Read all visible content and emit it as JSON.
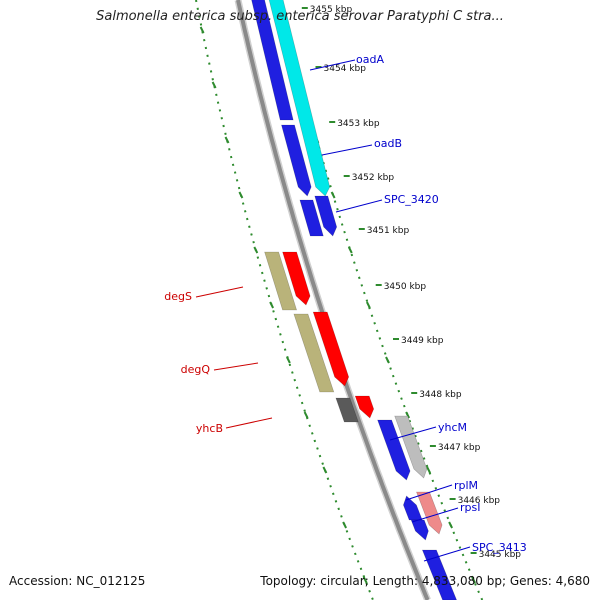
{
  "title": "Salmonella enterica subsp. enterica serovar Paratyphi C stra...",
  "footer": {
    "accession_label": "Accession:",
    "accession": "NC_012125",
    "topology_label": "Topology:",
    "topology": "circular",
    "length_label": "Length:",
    "length": "4,833,080 bp",
    "genes_label": "Genes:",
    "genes": "4,680"
  },
  "kbp_ticks": [
    "3455 kbp",
    "3454 kbp",
    "3453 kbp",
    "3452 kbp",
    "3451 kbp",
    "3450 kbp",
    "3449 kbp",
    "3448 kbp",
    "3447 kbp",
    "3446 kbp",
    "3445 kbp"
  ],
  "gene_labels": [
    "oadA",
    "oadB",
    "SPC_3420",
    "degS",
    "degQ",
    "yhcB",
    "yhcM",
    "rplM",
    "rpsI",
    "SPC_3413"
  ],
  "colors": {
    "backbone": "#8a8a8a",
    "forward_track": "#2e8b2e",
    "reverse_track": "#2e8b2e",
    "blue_gene": "#1f1fe0",
    "cyan_gene": "#00e8e8",
    "red_gene": "#ff0000",
    "olive_gene": "#b9b37a",
    "grey_gene": "#5a5a5a",
    "lightgrey_gene": "#bdbdbd",
    "pink_gene": "#ee8a8a",
    "forward_label": "#0000cc",
    "reverse_label": "#cc0000"
  }
}
